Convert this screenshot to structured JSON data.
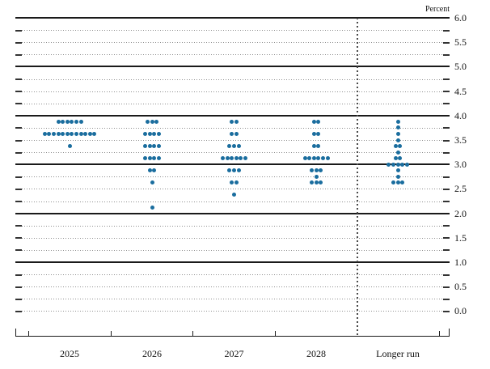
{
  "chart": {
    "unit_label": "Percent"
  },
  "chart_data": {
    "type": "scatter",
    "subtype": "fomc-dot-plot",
    "title": "Percent",
    "xlabel": "",
    "ylabel": "Percent",
    "ylim": [
      0.0,
      6.0
    ],
    "ytick_step": 0.5,
    "gridline_step": 0.25,
    "grid": "dotted, solid at whole percents",
    "legend_position": "none",
    "y_tick_labels": [
      "6.0",
      "5.5",
      "5.0",
      "4.5",
      "4.0",
      "3.5",
      "3.0",
      "2.5",
      "2.0",
      "1.5",
      "1.0",
      "0.5",
      "0.0"
    ],
    "categories": [
      "2025",
      "2026",
      "2027",
      "2028",
      "Longer run"
    ],
    "projections": [
      {
        "category": "2025",
        "dots": [
          {
            "rate": 3.875,
            "count": 6
          },
          {
            "rate": 3.625,
            "count": 12
          },
          {
            "rate": 3.375,
            "count": 1
          }
        ]
      },
      {
        "category": "2026",
        "dots": [
          {
            "rate": 3.875,
            "count": 3
          },
          {
            "rate": 3.625,
            "count": 4
          },
          {
            "rate": 3.375,
            "count": 4
          },
          {
            "rate": 3.125,
            "count": 4
          },
          {
            "rate": 2.875,
            "count": 2
          },
          {
            "rate": 2.625,
            "count": 1
          },
          {
            "rate": 2.125,
            "count": 1
          }
        ]
      },
      {
        "category": "2027",
        "dots": [
          {
            "rate": 3.875,
            "count": 2
          },
          {
            "rate": 3.625,
            "count": 2
          },
          {
            "rate": 3.375,
            "count": 3
          },
          {
            "rate": 3.125,
            "count": 6
          },
          {
            "rate": 2.875,
            "count": 3
          },
          {
            "rate": 2.625,
            "count": 2
          },
          {
            "rate": 2.375,
            "count": 1
          }
        ]
      },
      {
        "category": "2028",
        "dots": [
          {
            "rate": 3.875,
            "count": 2
          },
          {
            "rate": 3.625,
            "count": 2
          },
          {
            "rate": 3.375,
            "count": 2
          },
          {
            "rate": 3.125,
            "count": 6
          },
          {
            "rate": 2.875,
            "count": 3
          },
          {
            "rate": 2.75,
            "count": 1
          },
          {
            "rate": 2.625,
            "count": 3
          }
        ]
      },
      {
        "category": "Longer run",
        "dots": [
          {
            "rate": 3.875,
            "count": 1
          },
          {
            "rate": 3.75,
            "count": 1
          },
          {
            "rate": 3.625,
            "count": 1
          },
          {
            "rate": 3.5,
            "count": 1
          },
          {
            "rate": 3.375,
            "count": 2
          },
          {
            "rate": 3.25,
            "count": 1
          },
          {
            "rate": 3.125,
            "count": 2
          },
          {
            "rate": 3.0,
            "count": 5
          },
          {
            "rate": 2.875,
            "count": 1
          },
          {
            "rate": 2.75,
            "count": 1
          },
          {
            "rate": 2.625,
            "count": 3
          }
        ]
      }
    ]
  },
  "colors": {
    "dot": "#1a6d9e",
    "grid_dotted": "#8f8f8f",
    "line_solid": "#1a1a1a",
    "text": "#111111"
  }
}
